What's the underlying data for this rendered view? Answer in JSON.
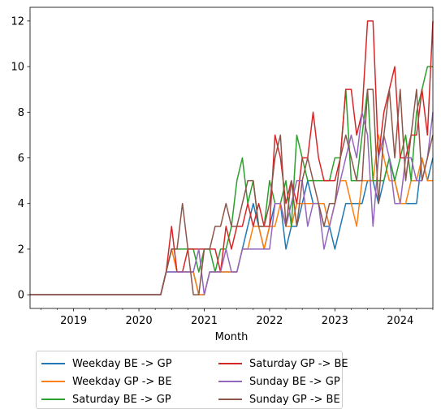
{
  "chart_data": {
    "type": "line",
    "title": "",
    "xlabel": "Month",
    "ylabel": "",
    "xlim": [
      "2018-05",
      "2024-07"
    ],
    "ylim": [
      -0.6,
      12.6
    ],
    "x_ticks": [
      "2019",
      "2020",
      "2021",
      "2022",
      "2023",
      "2024"
    ],
    "y_ticks": [
      0,
      2,
      4,
      6,
      8,
      10,
      12
    ],
    "grid": false,
    "legend_placement": "below",
    "x": [
      "2018-05",
      "2018-06",
      "2018-07",
      "2018-08",
      "2018-09",
      "2018-10",
      "2018-11",
      "2018-12",
      "2019-01",
      "2019-02",
      "2019-03",
      "2019-04",
      "2019-05",
      "2019-06",
      "2019-07",
      "2019-08",
      "2019-09",
      "2019-10",
      "2019-11",
      "2019-12",
      "2020-01",
      "2020-02",
      "2020-03",
      "2020-04",
      "2020-05",
      "2020-06",
      "2020-07",
      "2020-08",
      "2020-09",
      "2020-10",
      "2020-11",
      "2020-12",
      "2021-01",
      "2021-02",
      "2021-03",
      "2021-04",
      "2021-05",
      "2021-06",
      "2021-07",
      "2021-08",
      "2021-09",
      "2021-10",
      "2021-11",
      "2021-12",
      "2022-01",
      "2022-02",
      "2022-03",
      "2022-04",
      "2022-05",
      "2022-06",
      "2022-07",
      "2022-08",
      "2022-09",
      "2022-10",
      "2022-11",
      "2022-12",
      "2023-01",
      "2023-02",
      "2023-03",
      "2023-04",
      "2023-05",
      "2023-06",
      "2023-07",
      "2023-08",
      "2023-09",
      "2023-10",
      "2023-11",
      "2023-12",
      "2024-01",
      "2024-02",
      "2024-03",
      "2024-04",
      "2024-05",
      "2024-06",
      "2024-07"
    ],
    "series": [
      {
        "name": "Weekday BE -> GP",
        "color": "#1f77b4",
        "values": [
          0,
          0,
          0,
          0,
          0,
          0,
          0,
          0,
          0,
          0,
          0,
          0,
          0,
          0,
          0,
          0,
          0,
          0,
          0,
          0,
          0,
          0,
          0,
          0,
          0,
          1,
          1,
          1,
          1,
          1,
          1,
          0,
          0,
          1,
          1,
          1,
          1,
          1,
          1,
          2,
          3,
          4,
          3,
          2,
          3,
          4,
          4,
          2,
          3,
          3,
          4,
          5,
          4,
          4,
          3,
          3,
          2,
          3,
          4,
          4,
          4,
          4,
          5,
          5,
          4,
          5,
          6,
          5,
          4,
          4,
          4,
          4,
          6,
          5,
          6
        ]
      },
      {
        "name": "Weekday GP -> BE",
        "color": "#ff7f0e",
        "values": [
          0,
          0,
          0,
          0,
          0,
          0,
          0,
          0,
          0,
          0,
          0,
          0,
          0,
          0,
          0,
          0,
          0,
          0,
          0,
          0,
          0,
          0,
          0,
          0,
          0,
          1,
          2,
          1,
          1,
          1,
          1,
          0,
          0,
          1,
          1,
          1,
          1,
          1,
          1,
          2,
          2,
          3,
          3,
          2,
          3,
          3,
          4,
          3,
          3,
          4,
          4,
          4,
          4,
          4,
          4,
          3,
          4,
          5,
          5,
          4,
          3,
          5,
          5,
          5,
          7,
          6,
          5,
          5,
          4,
          4,
          5,
          5,
          6,
          5,
          5
        ]
      },
      {
        "name": "Saturday BE -> GP",
        "color": "#2ca02c",
        "values": [
          0,
          0,
          0,
          0,
          0,
          0,
          0,
          0,
          0,
          0,
          0,
          0,
          0,
          0,
          0,
          0,
          0,
          0,
          0,
          0,
          0,
          0,
          0,
          0,
          0,
          1,
          2,
          2,
          2,
          2,
          2,
          1,
          2,
          2,
          1,
          2,
          2,
          3,
          5,
          6,
          4,
          5,
          3,
          3,
          5,
          4,
          4,
          5,
          3,
          7,
          6,
          5,
          5,
          5,
          5,
          5,
          6,
          6,
          9,
          5,
          5,
          7,
          9,
          5,
          5,
          5,
          6,
          5,
          6,
          7,
          5,
          8,
          9,
          10,
          10
        ]
      },
      {
        "name": "Saturday GP -> BE",
        "color": "#d62728",
        "values": [
          0,
          0,
          0,
          0,
          0,
          0,
          0,
          0,
          0,
          0,
          0,
          0,
          0,
          0,
          0,
          0,
          0,
          0,
          0,
          0,
          0,
          0,
          0,
          0,
          0,
          1,
          3,
          1,
          1,
          2,
          2,
          2,
          2,
          2,
          2,
          1,
          3,
          2,
          3,
          3,
          4,
          3,
          4,
          3,
          3,
          7,
          6,
          4,
          5,
          4,
          6,
          6,
          8,
          6,
          5,
          5,
          5,
          6,
          9,
          9,
          7,
          8,
          12,
          12,
          6,
          8,
          9,
          10,
          6,
          6,
          7,
          7,
          9,
          7,
          12
        ]
      },
      {
        "name": "Sunday BE -> GP",
        "color": "#9467bd",
        "values": [
          0,
          0,
          0,
          0,
          0,
          0,
          0,
          0,
          0,
          0,
          0,
          0,
          0,
          0,
          0,
          0,
          0,
          0,
          0,
          0,
          0,
          0,
          0,
          0,
          0,
          1,
          1,
          1,
          1,
          1,
          1,
          2,
          0,
          1,
          1,
          1,
          2,
          1,
          1,
          2,
          2,
          2,
          2,
          2,
          2,
          4,
          4,
          3,
          4,
          5,
          5,
          3,
          4,
          4,
          2,
          3,
          4,
          5,
          6,
          7,
          6,
          8,
          7,
          3,
          6,
          7,
          6,
          4,
          4,
          6,
          6,
          5,
          5,
          6,
          8
        ]
      },
      {
        "name": "Sunday GP -> BE",
        "color": "#8c564b",
        "values": [
          0,
          0,
          0,
          0,
          0,
          0,
          0,
          0,
          0,
          0,
          0,
          0,
          0,
          0,
          0,
          0,
          0,
          0,
          0,
          0,
          0,
          0,
          0,
          0,
          0,
          1,
          2,
          2,
          4,
          2,
          0,
          0,
          2,
          2,
          3,
          3,
          4,
          3,
          3,
          4,
          5,
          5,
          3,
          3,
          4,
          6,
          7,
          3,
          5,
          3,
          5,
          6,
          5,
          4,
          3,
          4,
          4,
          6,
          7,
          6,
          5,
          5,
          9,
          9,
          4,
          7,
          9,
          6,
          9,
          5,
          7,
          9,
          5,
          6,
          7
        ]
      }
    ]
  }
}
